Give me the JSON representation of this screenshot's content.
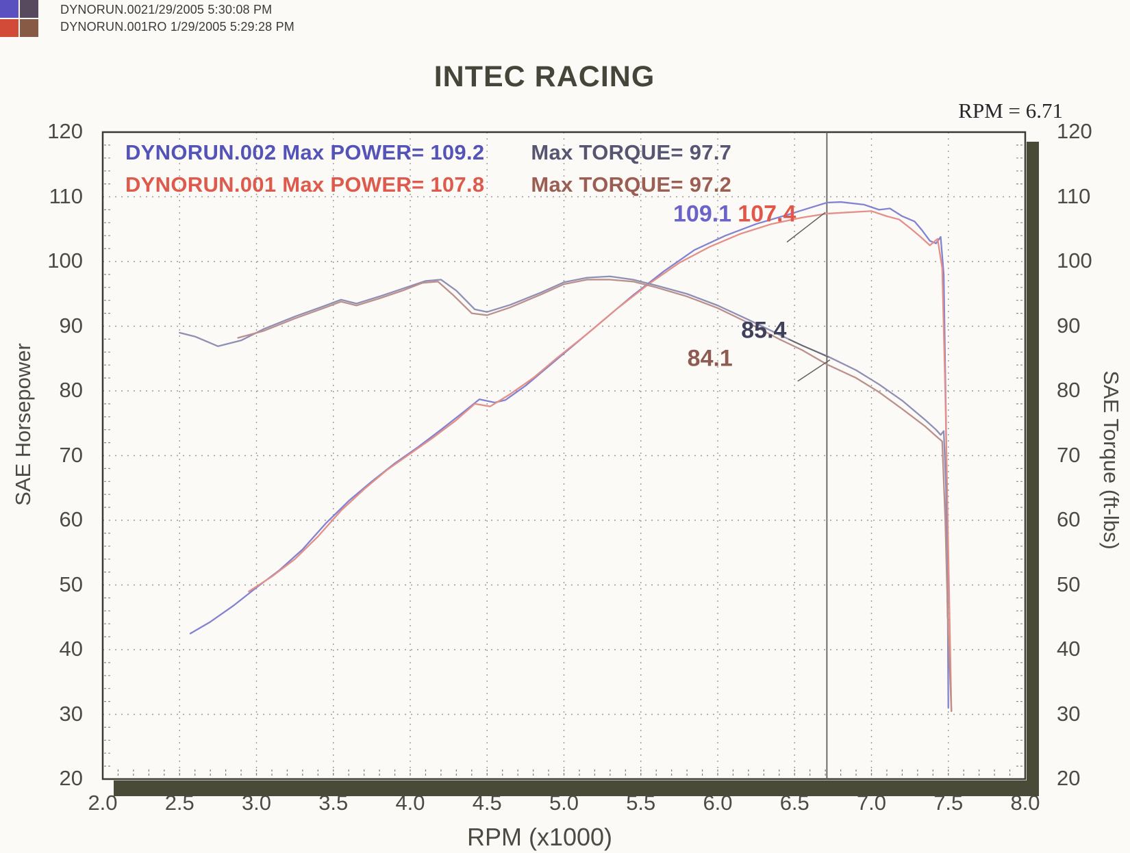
{
  "header": {
    "line1": "DYNORUN.0021/29/2005 5:30:08 PM",
    "line2": "DYNORUN.001RO  1/29/2005 5:29:28 PM",
    "logo_colors": [
      "#5b50c0",
      "#584a5e",
      "#d24a38",
      "#875a46"
    ]
  },
  "title": "INTEC RACING",
  "cursor_readout": "RPM = 6.71",
  "chart_data": {
    "type": "line",
    "title": "INTEC RACING",
    "xlabel": "RPM (x1000)",
    "ylabel_left": "SAE Horsepower",
    "ylabel_right": "SAE Torque (ft-lbs)",
    "xlim": [
      2.0,
      8.0
    ],
    "ylim": [
      20,
      120
    ],
    "xticks": [
      "2.0",
      "2.5",
      "3.0",
      "3.5",
      "4.0",
      "4.5",
      "5.0",
      "5.5",
      "6.0",
      "6.5",
      "7.0",
      "7.5",
      "8.0"
    ],
    "yticks": [
      "120",
      "110",
      "100",
      "90",
      "80",
      "70",
      "60",
      "50",
      "40",
      "30",
      "20"
    ],
    "grid": true,
    "legend_position": "top-left-inside",
    "cursor_rpm": 6.71,
    "frame_shadow_color": "#4a4a38",
    "grid_color": "#9a9a94",
    "border_color": "#3a3a32",
    "cursor_color": "#5f5f5f",
    "legend": [
      {
        "run": "DYNORUN.002",
        "max_power": 109.2,
        "max_torque": 97.7,
        "power_label": "DYNORUN.002  Max POWER= 109.2",
        "torque_label": "Max TORQUE= 97.7",
        "power_color": "#5453b8",
        "torque_color": "#565672"
      },
      {
        "run": "DYNORUN.001",
        "max_power": 107.8,
        "max_torque": 97.2,
        "power_label": "DYNORUN.001  Max POWER= 107.8",
        "torque_label": "Max TORQUE= 97.2",
        "power_color": "#dd5a4c",
        "torque_color": "#9c5d53"
      }
    ],
    "annotations": [
      {
        "text": "109.1",
        "x": 5.9,
        "y": 107.3,
        "color": "#6b63c9"
      },
      {
        "text": "107.4",
        "x": 6.32,
        "y": 107.3,
        "color": "#e2574b"
      },
      {
        "text": "85.4",
        "x": 6.3,
        "y": 89.3,
        "color": "#3f415c"
      },
      {
        "text": "84.1",
        "x": 5.95,
        "y": 85.0,
        "color": "#8e5a51"
      }
    ],
    "leader_lines": [
      [
        [
          6.45,
          103.0
        ],
        [
          6.7,
          107.6
        ]
      ],
      [
        [
          6.46,
          88.0
        ],
        [
          6.72,
          85.2
        ]
      ],
      [
        [
          6.52,
          81.5
        ],
        [
          6.73,
          84.8
        ]
      ]
    ],
    "series": [
      {
        "name": "DYNORUN.002 Power (HP)",
        "color": "#8282d2",
        "points": [
          [
            2.57,
            42.5
          ],
          [
            2.7,
            44.3
          ],
          [
            2.85,
            46.8
          ],
          [
            3.0,
            49.6
          ],
          [
            3.15,
            52.3
          ],
          [
            3.3,
            55.5
          ],
          [
            3.45,
            59.5
          ],
          [
            3.6,
            63.0
          ],
          [
            3.75,
            66.0
          ],
          [
            3.9,
            68.8
          ],
          [
            4.05,
            71.3
          ],
          [
            4.2,
            74.0
          ],
          [
            4.35,
            76.8
          ],
          [
            4.45,
            78.7
          ],
          [
            4.55,
            78.2
          ],
          [
            4.62,
            78.6
          ],
          [
            4.75,
            80.8
          ],
          [
            4.9,
            83.8
          ],
          [
            5.05,
            86.8
          ],
          [
            5.25,
            90.8
          ],
          [
            5.45,
            94.8
          ],
          [
            5.65,
            98.5
          ],
          [
            5.85,
            101.8
          ],
          [
            6.05,
            104.0
          ],
          [
            6.25,
            105.8
          ],
          [
            6.45,
            107.2
          ],
          [
            6.6,
            108.3
          ],
          [
            6.71,
            109.1
          ],
          [
            6.8,
            109.2
          ],
          [
            6.95,
            108.8
          ],
          [
            7.05,
            108.0
          ],
          [
            7.12,
            108.2
          ],
          [
            7.2,
            107.0
          ],
          [
            7.28,
            106.2
          ],
          [
            7.33,
            104.8
          ],
          [
            7.38,
            103.2
          ],
          [
            7.42,
            102.8
          ],
          [
            7.45,
            103.8
          ],
          [
            7.47,
            98.0
          ],
          [
            7.485,
            75.0
          ],
          [
            7.495,
            50.0
          ],
          [
            7.5,
            31.0
          ]
        ]
      },
      {
        "name": "DYNORUN.001 Power (HP)",
        "color": "#e48f87",
        "points": [
          [
            2.95,
            49.0
          ],
          [
            3.1,
            51.3
          ],
          [
            3.25,
            54.0
          ],
          [
            3.4,
            57.5
          ],
          [
            3.55,
            61.5
          ],
          [
            3.7,
            64.8
          ],
          [
            3.85,
            67.8
          ],
          [
            4.0,
            70.3
          ],
          [
            4.15,
            72.8
          ],
          [
            4.3,
            75.5
          ],
          [
            4.42,
            78.0
          ],
          [
            4.52,
            77.6
          ],
          [
            4.65,
            79.5
          ],
          [
            4.8,
            82.0
          ],
          [
            4.95,
            85.0
          ],
          [
            5.15,
            88.8
          ],
          [
            5.35,
            92.8
          ],
          [
            5.55,
            96.5
          ],
          [
            5.75,
            99.8
          ],
          [
            5.95,
            102.3
          ],
          [
            6.15,
            104.3
          ],
          [
            6.35,
            105.8
          ],
          [
            6.55,
            106.8
          ],
          [
            6.71,
            107.4
          ],
          [
            6.85,
            107.6
          ],
          [
            7.0,
            107.8
          ],
          [
            7.1,
            107.0
          ],
          [
            7.18,
            106.5
          ],
          [
            7.26,
            105.0
          ],
          [
            7.32,
            103.8
          ],
          [
            7.38,
            102.5
          ],
          [
            7.43,
            103.5
          ],
          [
            7.46,
            99.0
          ],
          [
            7.48,
            80.0
          ],
          [
            7.5,
            55.0
          ],
          [
            7.52,
            30.5
          ]
        ]
      },
      {
        "name": "DYNORUN.002 Torque (ft-lbs)",
        "color": "#8f8fb5",
        "points": [
          [
            2.5,
            89.0
          ],
          [
            2.6,
            88.4
          ],
          [
            2.75,
            86.9
          ],
          [
            2.9,
            87.8
          ],
          [
            3.05,
            89.6
          ],
          [
            3.25,
            91.5
          ],
          [
            3.45,
            93.2
          ],
          [
            3.55,
            94.1
          ],
          [
            3.65,
            93.5
          ],
          [
            3.8,
            94.6
          ],
          [
            3.95,
            95.8
          ],
          [
            4.1,
            97.0
          ],
          [
            4.2,
            97.2
          ],
          [
            4.3,
            95.5
          ],
          [
            4.42,
            92.6
          ],
          [
            4.5,
            92.2
          ],
          [
            4.65,
            93.3
          ],
          [
            4.85,
            95.2
          ],
          [
            5.0,
            96.8
          ],
          [
            5.15,
            97.5
          ],
          [
            5.3,
            97.7
          ],
          [
            5.45,
            97.2
          ],
          [
            5.6,
            96.3
          ],
          [
            5.8,
            95.0
          ],
          [
            6.0,
            93.2
          ],
          [
            6.2,
            91.0
          ],
          [
            6.4,
            88.7
          ],
          [
            6.55,
            87.0
          ],
          [
            6.71,
            85.4
          ],
          [
            6.9,
            83.2
          ],
          [
            7.05,
            81.0
          ],
          [
            7.2,
            78.5
          ],
          [
            7.35,
            75.5
          ],
          [
            7.42,
            74.0
          ],
          [
            7.45,
            73.2
          ],
          [
            7.47,
            73.8
          ],
          [
            7.485,
            65.0
          ],
          [
            7.495,
            45.0
          ]
        ]
      },
      {
        "name": "DYNORUN.001 Torque (ft-lbs)",
        "color": "#bb908c",
        "points": [
          [
            2.88,
            88.2
          ],
          [
            3.05,
            89.3
          ],
          [
            3.25,
            91.2
          ],
          [
            3.45,
            92.9
          ],
          [
            3.55,
            93.8
          ],
          [
            3.65,
            93.2
          ],
          [
            3.8,
            94.3
          ],
          [
            3.95,
            95.5
          ],
          [
            4.08,
            96.7
          ],
          [
            4.18,
            96.9
          ],
          [
            4.28,
            94.8
          ],
          [
            4.4,
            92.0
          ],
          [
            4.5,
            91.7
          ],
          [
            4.65,
            92.9
          ],
          [
            4.85,
            94.9
          ],
          [
            5.0,
            96.5
          ],
          [
            5.15,
            97.2
          ],
          [
            5.3,
            97.2
          ],
          [
            5.45,
            96.9
          ],
          [
            5.6,
            96.0
          ],
          [
            5.8,
            94.6
          ],
          [
            6.0,
            92.8
          ],
          [
            6.2,
            90.5
          ],
          [
            6.4,
            88.0
          ],
          [
            6.55,
            86.3
          ],
          [
            6.71,
            84.1
          ],
          [
            6.9,
            82.0
          ],
          [
            7.05,
            79.8
          ],
          [
            7.2,
            77.2
          ],
          [
            7.35,
            74.5
          ],
          [
            7.43,
            72.8
          ],
          [
            7.46,
            72.2
          ],
          [
            7.48,
            60.0
          ],
          [
            7.5,
            42.0
          ],
          [
            7.52,
            30.5
          ]
        ]
      }
    ]
  }
}
